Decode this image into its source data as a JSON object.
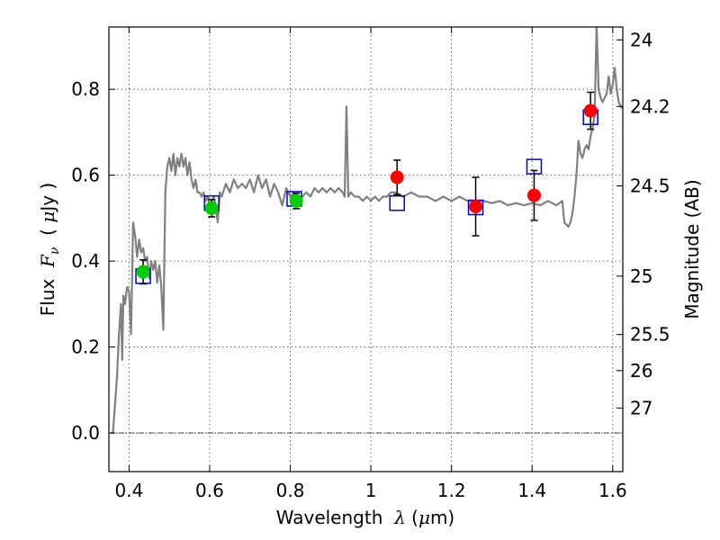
{
  "chart_data": {
    "type": "scatter",
    "xlabel": {
      "prefix": "Wavelength  ",
      "symbol": "λ",
      "unit_open": " (",
      "unit_mu": "μ",
      "unit_close": "m)"
    },
    "ylabel": {
      "prefix": "Flux  ",
      "symbol": "F",
      "sub": "ν",
      "unit_open": "  ( ",
      "unit_mu": "μ",
      "unit_close": "Jy )"
    },
    "y2label": "Magnitude (AB)",
    "xlim": [
      0.35,
      1.625
    ],
    "ylim": [
      -0.09,
      0.945
    ],
    "grid": true,
    "x_ticks": [
      {
        "value": 0.4,
        "label": "0.4"
      },
      {
        "value": 0.6,
        "label": "0.6"
      },
      {
        "value": 0.8,
        "label": "0.8"
      },
      {
        "value": 1.0,
        "label": "1"
      },
      {
        "value": 1.2,
        "label": "1.2"
      },
      {
        "value": 1.4,
        "label": "1.4"
      },
      {
        "value": 1.6,
        "label": "1.6"
      }
    ],
    "y_ticks": [
      {
        "value": 0.0,
        "label": "0.0"
      },
      {
        "value": 0.2,
        "label": "0.2"
      },
      {
        "value": 0.4,
        "label": "0.4"
      },
      {
        "value": 0.6,
        "label": "0.6"
      },
      {
        "value": 0.8,
        "label": "0.8"
      }
    ],
    "mag_ticks": [
      {
        "flux": 0.915,
        "label": "24"
      },
      {
        "flux": 0.76,
        "label": "24.2"
      },
      {
        "flux": 0.575,
        "label": "24.5"
      },
      {
        "flux": 0.365,
        "label": "25"
      },
      {
        "flux": 0.229,
        "label": "25.5"
      },
      {
        "flux": 0.145,
        "label": "26"
      },
      {
        "flux": 0.058,
        "label": "27"
      }
    ],
    "zero_line": 0.0,
    "series": [
      {
        "kind": "spectrum",
        "color": "#808080",
        "points": [
          [
            0.355,
            0.0
          ],
          [
            0.36,
            0.0
          ],
          [
            0.37,
            0.13
          ],
          [
            0.375,
            0.23
          ],
          [
            0.38,
            0.3
          ],
          [
            0.383,
            0.17
          ],
          [
            0.386,
            0.32
          ],
          [
            0.39,
            0.3
          ],
          [
            0.395,
            0.34
          ],
          [
            0.4,
            0.33
          ],
          [
            0.405,
            0.23
          ],
          [
            0.41,
            0.49
          ],
          [
            0.415,
            0.46
          ],
          [
            0.42,
            0.41
          ],
          [
            0.425,
            0.45
          ],
          [
            0.43,
            0.42
          ],
          [
            0.435,
            0.43
          ],
          [
            0.44,
            0.4
          ],
          [
            0.445,
            0.41
          ],
          [
            0.45,
            0.36
          ],
          [
            0.455,
            0.4
          ],
          [
            0.46,
            0.38
          ],
          [
            0.465,
            0.4
          ],
          [
            0.47,
            0.35
          ],
          [
            0.475,
            0.39
          ],
          [
            0.48,
            0.34
          ],
          [
            0.485,
            0.24
          ],
          [
            0.49,
            0.56
          ],
          [
            0.495,
            0.62
          ],
          [
            0.5,
            0.64
          ],
          [
            0.505,
            0.61
          ],
          [
            0.51,
            0.65
          ],
          [
            0.515,
            0.6
          ],
          [
            0.52,
            0.64
          ],
          [
            0.525,
            0.62
          ],
          [
            0.53,
            0.65
          ],
          [
            0.535,
            0.62
          ],
          [
            0.54,
            0.64
          ],
          [
            0.545,
            0.6
          ],
          [
            0.55,
            0.63
          ],
          [
            0.555,
            0.59
          ],
          [
            0.56,
            0.57
          ],
          [
            0.565,
            0.59
          ],
          [
            0.57,
            0.56
          ],
          [
            0.575,
            0.56
          ],
          [
            0.58,
            0.55
          ],
          [
            0.585,
            0.56
          ],
          [
            0.59,
            0.54
          ],
          [
            0.595,
            0.55
          ],
          [
            0.6,
            0.53
          ],
          [
            0.605,
            0.54
          ],
          [
            0.61,
            0.55
          ],
          [
            0.615,
            0.53
          ],
          [
            0.62,
            0.49
          ],
          [
            0.625,
            0.56
          ],
          [
            0.63,
            0.55
          ],
          [
            0.64,
            0.58
          ],
          [
            0.65,
            0.56
          ],
          [
            0.66,
            0.59
          ],
          [
            0.67,
            0.57
          ],
          [
            0.68,
            0.58
          ],
          [
            0.69,
            0.57
          ],
          [
            0.7,
            0.59
          ],
          [
            0.71,
            0.56
          ],
          [
            0.72,
            0.6
          ],
          [
            0.73,
            0.57
          ],
          [
            0.74,
            0.59
          ],
          [
            0.75,
            0.55
          ],
          [
            0.76,
            0.58
          ],
          [
            0.77,
            0.56
          ],
          [
            0.78,
            0.53
          ],
          [
            0.79,
            0.57
          ],
          [
            0.8,
            0.55
          ],
          [
            0.81,
            0.56
          ],
          [
            0.82,
            0.54
          ],
          [
            0.83,
            0.55
          ],
          [
            0.84,
            0.56
          ],
          [
            0.85,
            0.55
          ],
          [
            0.86,
            0.57
          ],
          [
            0.87,
            0.56
          ],
          [
            0.88,
            0.57
          ],
          [
            0.89,
            0.56
          ],
          [
            0.9,
            0.57
          ],
          [
            0.91,
            0.56
          ],
          [
            0.92,
            0.57
          ],
          [
            0.93,
            0.56
          ],
          [
            0.935,
            0.55
          ],
          [
            0.9395,
            0.76
          ],
          [
            0.944,
            0.55
          ],
          [
            0.95,
            0.56
          ],
          [
            0.96,
            0.55
          ],
          [
            0.97,
            0.55
          ],
          [
            0.98,
            0.54
          ],
          [
            0.99,
            0.55
          ],
          [
            1.0,
            0.54
          ],
          [
            1.01,
            0.55
          ],
          [
            1.02,
            0.54
          ],
          [
            1.03,
            0.55
          ],
          [
            1.04,
            0.55
          ],
          [
            1.05,
            0.56
          ],
          [
            1.06,
            0.56
          ],
          [
            1.08,
            0.55
          ],
          [
            1.1,
            0.56
          ],
          [
            1.12,
            0.55
          ],
          [
            1.14,
            0.55
          ],
          [
            1.16,
            0.54
          ],
          [
            1.18,
            0.55
          ],
          [
            1.2,
            0.54
          ],
          [
            1.22,
            0.55
          ],
          [
            1.24,
            0.54
          ],
          [
            1.26,
            0.54
          ],
          [
            1.28,
            0.54
          ],
          [
            1.3,
            0.535
          ],
          [
            1.32,
            0.54
          ],
          [
            1.34,
            0.53
          ],
          [
            1.36,
            0.535
          ],
          [
            1.38,
            0.53
          ],
          [
            1.4,
            0.535
          ],
          [
            1.42,
            0.53
          ],
          [
            1.44,
            0.54
          ],
          [
            1.46,
            0.53
          ],
          [
            1.475,
            0.54
          ],
          [
            1.48,
            0.49
          ],
          [
            1.49,
            0.48
          ],
          [
            1.495,
            0.49
          ],
          [
            1.5,
            0.51
          ],
          [
            1.505,
            0.55
          ],
          [
            1.51,
            0.6
          ],
          [
            1.515,
            0.68
          ],
          [
            1.52,
            0.65
          ],
          [
            1.525,
            0.64
          ],
          [
            1.53,
            0.66
          ],
          [
            1.535,
            0.67
          ],
          [
            1.54,
            0.66
          ],
          [
            1.545,
            0.69
          ],
          [
            1.55,
            0.71
          ],
          [
            1.555,
            0.74
          ],
          [
            1.56,
            0.95
          ],
          [
            1.565,
            0.8
          ],
          [
            1.57,
            0.78
          ],
          [
            1.575,
            0.77
          ],
          [
            1.58,
            0.78
          ],
          [
            1.585,
            0.79
          ],
          [
            1.59,
            0.83
          ],
          [
            1.595,
            0.79
          ],
          [
            1.6,
            0.81
          ],
          [
            1.605,
            0.85
          ],
          [
            1.61,
            0.8
          ],
          [
            1.615,
            0.77
          ],
          [
            1.62,
            0.76
          ],
          [
            1.625,
            0.755
          ]
        ]
      },
      {
        "kind": "model-squares",
        "color": "#0000cc",
        "points": [
          [
            0.435,
            0.365
          ],
          [
            0.605,
            0.535
          ],
          [
            0.81,
            0.545
          ],
          [
            1.065,
            0.535
          ],
          [
            1.26,
            0.525
          ],
          [
            1.405,
            0.62
          ],
          [
            1.545,
            0.735
          ]
        ]
      },
      {
        "kind": "observed-green",
        "color": "#00cc00",
        "points": [
          {
            "x": 0.435,
            "y": 0.375,
            "err": 0.028
          },
          {
            "x": 0.605,
            "y": 0.523,
            "err": 0.02
          },
          {
            "x": 0.815,
            "y": 0.54,
            "err": 0.018
          }
        ]
      },
      {
        "kind": "observed-red",
        "color": "#ff0000",
        "points": [
          {
            "x": 1.065,
            "y": 0.595,
            "err": 0.04
          },
          {
            "x": 1.26,
            "y": 0.527,
            "err": 0.068
          },
          {
            "x": 1.405,
            "y": 0.553,
            "err": 0.058
          },
          {
            "x": 1.545,
            "y": 0.75,
            "err": 0.043
          }
        ]
      }
    ]
  }
}
